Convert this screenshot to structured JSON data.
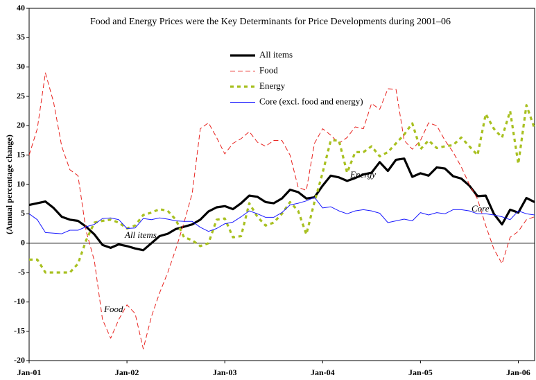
{
  "chart_data": {
    "type": "line",
    "title": "Food and Energy Prices were the Key Determinants for Price Developments during 2001–06",
    "ylabel": "(Annual percentage change)",
    "categories": [
      "Jan-01",
      null,
      null,
      null,
      null,
      null,
      null,
      null,
      null,
      null,
      null,
      null,
      "Jan-02",
      null,
      null,
      null,
      null,
      null,
      null,
      null,
      null,
      null,
      null,
      null,
      "Jan-03",
      null,
      null,
      null,
      null,
      null,
      null,
      null,
      null,
      null,
      null,
      null,
      "Jan-04",
      null,
      null,
      null,
      null,
      null,
      null,
      null,
      null,
      null,
      null,
      null,
      "Jan-05",
      null,
      null,
      null,
      null,
      null,
      null,
      null,
      null,
      null,
      null,
      null,
      "Jan-06",
      null,
      null
    ],
    "series": [
      {
        "name": "All items",
        "color": "#000000",
        "values": [
          6.5,
          6.8,
          7.1,
          6,
          4.5,
          4,
          3.8,
          2.8,
          1.5,
          -0.3,
          -0.8,
          -0.2,
          -0.5,
          -0.9,
          -1.2,
          0,
          1.2,
          1.6,
          2.4,
          2.8,
          3.2,
          4,
          5.4,
          6.1,
          6.3,
          5.8,
          6.8,
          8.1,
          7.9,
          7,
          6.8,
          7.6,
          9.1,
          8.7,
          7.6,
          7.8,
          9.8,
          11.5,
          11.2,
          10.6,
          11.1,
          11.7,
          12,
          13.8,
          12.3,
          14.2,
          14.4,
          11.3,
          11.9,
          11.5,
          12.9,
          12.7,
          11.4,
          11,
          9.8,
          8,
          8.1,
          5,
          3.2,
          5.7,
          5.2,
          7.7,
          7
        ]
      },
      {
        "name": "Food",
        "color": "#e8231f",
        "values": [
          15,
          19.5,
          29,
          24,
          16.5,
          12.5,
          11.5,
          2,
          -3,
          -13,
          -16.2,
          -13,
          -10.5,
          -12,
          -18,
          -12.5,
          -8.5,
          -5,
          -1,
          3.5,
          8.5,
          19.5,
          20.5,
          18,
          15.2,
          17,
          17.8,
          19,
          17.2,
          16.5,
          17.5,
          17.5,
          15,
          9.5,
          9,
          17,
          19.5,
          18.4,
          17,
          18,
          19.8,
          19.5,
          23.8,
          22.8,
          26.3,
          26.2,
          17.5,
          16,
          17.5,
          20.5,
          20,
          17.5,
          15.5,
          13,
          10,
          7.5,
          3,
          -1,
          -3.5,
          1,
          2,
          4,
          4.5
        ]
      },
      {
        "name": "Energy",
        "color": "#a8c020",
        "values": [
          -2.8,
          -2.8,
          -5,
          -5,
          -5,
          -5,
          -3.5,
          0.5,
          3.5,
          3.8,
          4,
          3.5,
          2.5,
          3,
          4.8,
          5.2,
          5.8,
          5.5,
          4,
          1,
          0.5,
          -0.5,
          0,
          4,
          4.2,
          1,
          1.2,
          6.8,
          4.5,
          3,
          3.5,
          5,
          7,
          5.5,
          1.5,
          7,
          12,
          17.5,
          17.5,
          12,
          15.5,
          15.5,
          16.5,
          14.8,
          15.5,
          17,
          18.5,
          20.4,
          16,
          17.5,
          16.2,
          16.5,
          16.7,
          18,
          16.5,
          15,
          22,
          19.5,
          18,
          22.5,
          13.5,
          23.5,
          19.5
        ]
      },
      {
        "name": "Core (excl. food and energy)",
        "color": "#1a1aff",
        "values": [
          5,
          4,
          1.8,
          1.7,
          1.6,
          2.2,
          2.2,
          2.8,
          3.2,
          4.2,
          4.3,
          4,
          2.5,
          2.6,
          4.2,
          4,
          4.3,
          4.1,
          3.8,
          3.7,
          3.7,
          2.7,
          2,
          2.5,
          3.3,
          3.6,
          4.5,
          5.5,
          5,
          4.4,
          4.4,
          5.2,
          6.5,
          6.8,
          7.2,
          7.8,
          6,
          6.2,
          5.5,
          5,
          5.5,
          5.7,
          5.5,
          5.1,
          3.5,
          3.8,
          4.1,
          3.8,
          5.2,
          4.8,
          5.2,
          5,
          5.7,
          5.7,
          5.5,
          5,
          5,
          4.8,
          4.5,
          4,
          5.5,
          5,
          4.8
        ]
      }
    ],
    "annotations": [
      "All items",
      "Food",
      "Energy",
      "Core"
    ],
    "ylim": [
      -20,
      40
    ],
    "yticks": [
      -20,
      -15,
      -10,
      -5,
      0,
      5,
      10,
      15,
      20,
      25,
      30,
      35,
      40
    ],
    "grid": false
  }
}
